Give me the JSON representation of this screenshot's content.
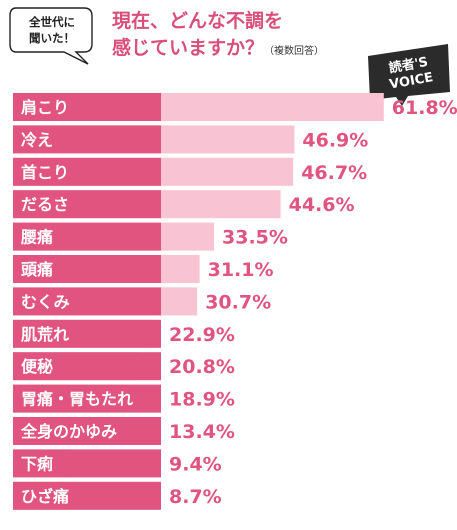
{
  "callout": {
    "line1": "全世代に",
    "line2": "聞いた！"
  },
  "heading": {
    "line1": "現在、どんな不調を",
    "line2": "感じていますか？",
    "note": "（複数回答）"
  },
  "badge": {
    "line1": "読者'S",
    "line2": "VOICE"
  },
  "colors": {
    "accent": "#e0547f",
    "bar": "#f8c3d3",
    "label_bg": "#e0547f",
    "value_text": "#e0547f"
  },
  "chart_data": {
    "type": "bar",
    "orientation": "horizontal",
    "categories": [
      "肩こり",
      "冷え",
      "首こり",
      "だるさ",
      "腰痛",
      "頭痛",
      "むくみ",
      "肌荒れ",
      "便秘",
      "胃痛・胃もたれ",
      "全身のかゆみ",
      "下痢",
      "ひざ痛"
    ],
    "values": [
      61.8,
      46.9,
      46.7,
      44.6,
      33.5,
      31.1,
      30.7,
      22.9,
      20.8,
      18.9,
      13.4,
      9.4,
      8.7
    ],
    "value_labels": [
      "61.8%",
      "46.9%",
      "46.7%",
      "44.6%",
      "33.5%",
      "31.1%",
      "30.7%",
      "22.9%",
      "20.8%",
      "18.9%",
      "13.4%",
      "9.4%",
      "8.7%"
    ],
    "unit": "%",
    "grid": false,
    "legend": "none"
  }
}
